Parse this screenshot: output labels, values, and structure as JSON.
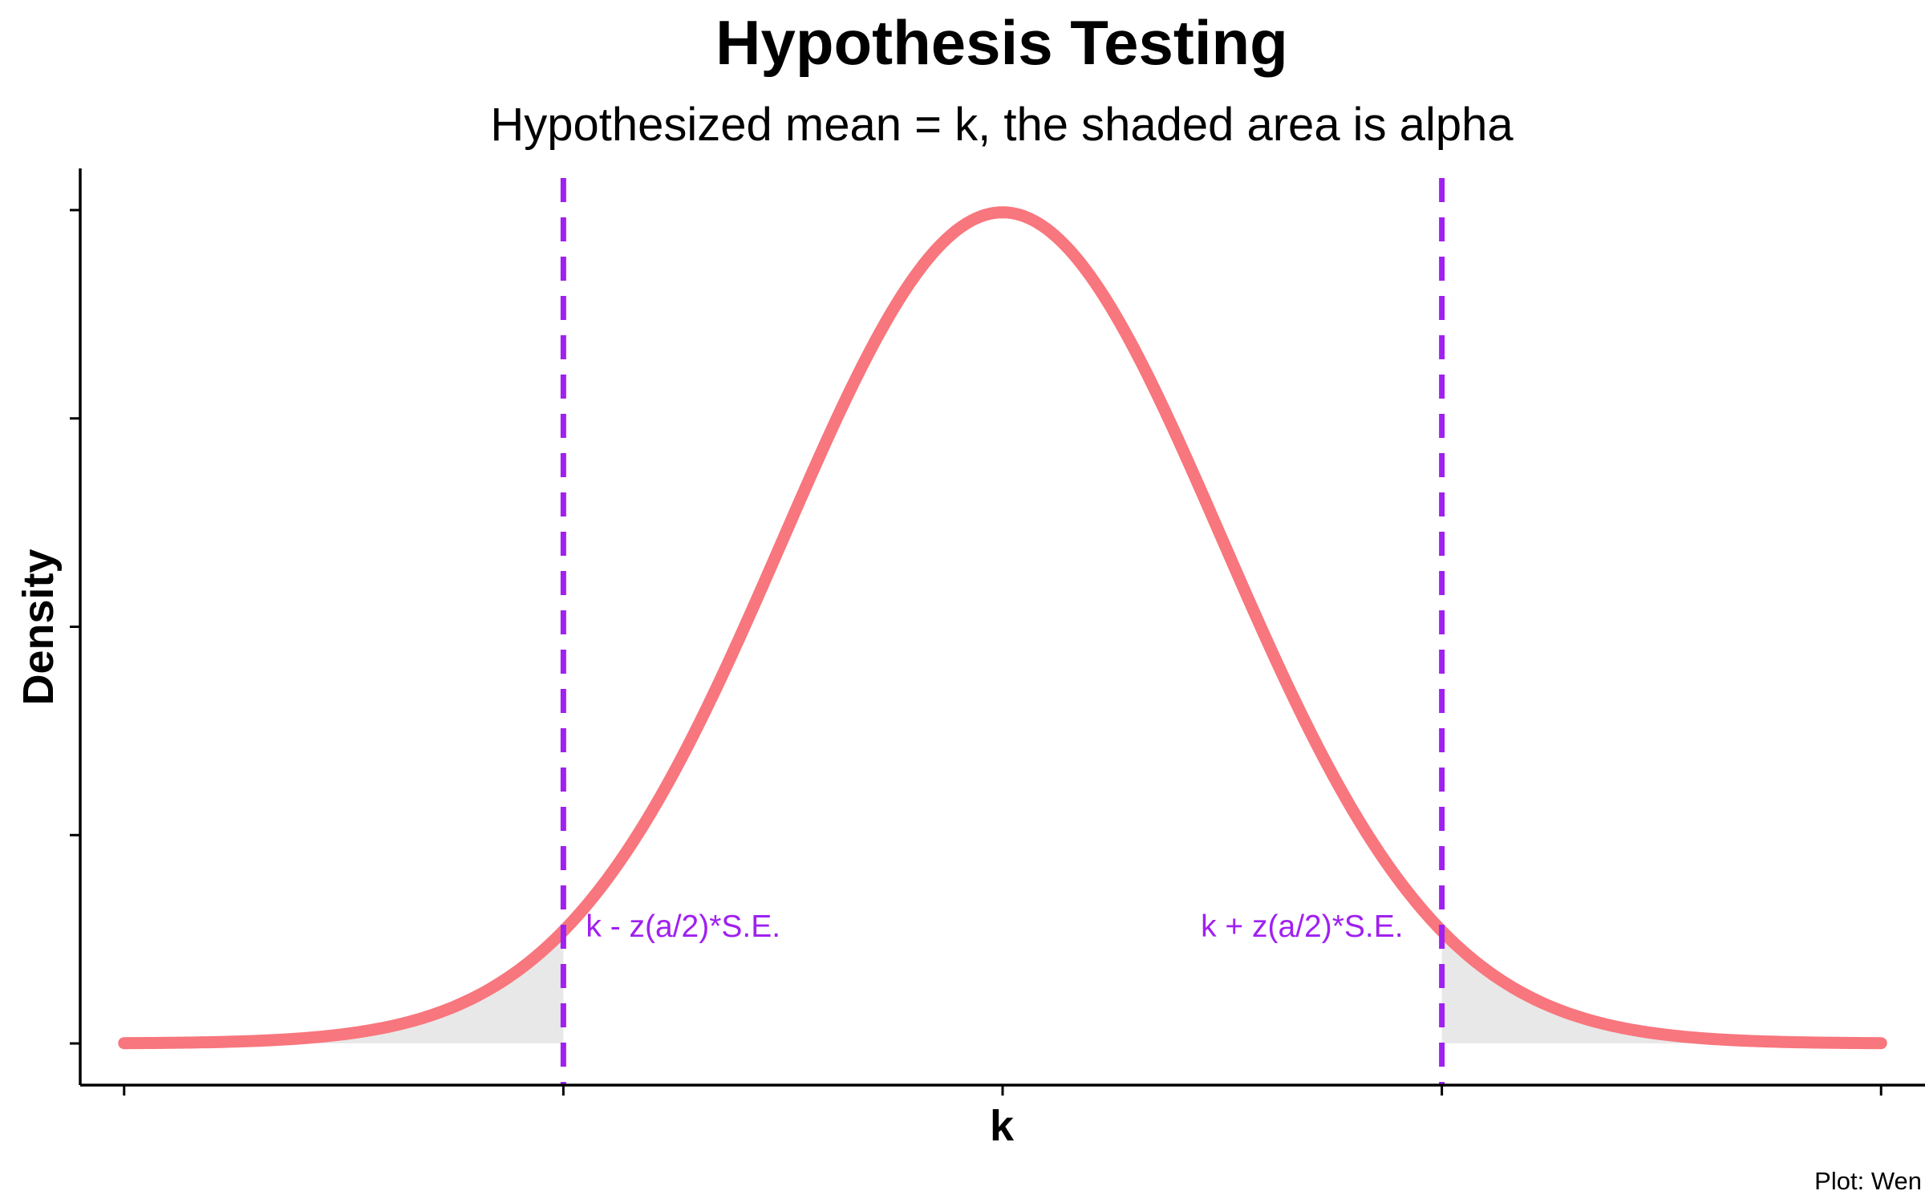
{
  "chart_data": {
    "type": "area",
    "title": "Hypothesis Testing",
    "subtitle": "Hypothesized mean = k, the shaded area is alpha",
    "xlabel": "k",
    "ylabel": "Density",
    "caption": "Plot: Wen",
    "xlim": [
      -4.2,
      4.2
    ],
    "ylim": [
      -0.02,
      0.42
    ],
    "mean": 0,
    "sd": 1,
    "critical_values": [
      -2.0,
      2.0
    ],
    "x_ticks": [
      -4,
      -2,
      0,
      2,
      4
    ],
    "y_ticks": [
      0,
      0.1,
      0.2,
      0.3,
      0.4
    ],
    "grid": false,
    "legend": "none",
    "annotations": [
      {
        "text": "k - z(a/2)*S.E.",
        "x": -2.0,
        "side": "right"
      },
      {
        "text": "k + z(a/2)*S.E.",
        "x": 2.0,
        "side": "left"
      }
    ],
    "colors": {
      "curve": "#F8767D",
      "critical_line": "#A020F0",
      "shade": "#E8E8E8",
      "axis": "#000000"
    }
  }
}
